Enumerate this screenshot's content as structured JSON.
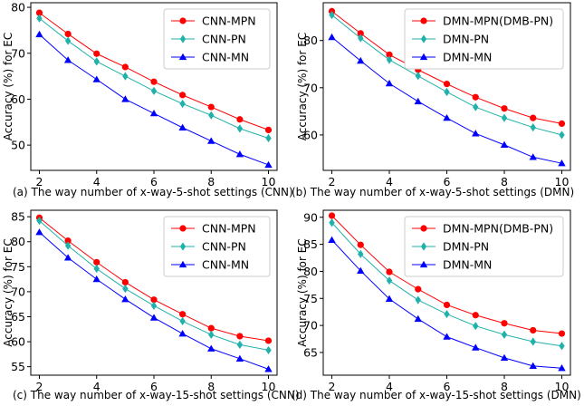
{
  "figure": {
    "panels": [
      {
        "caption": "(a) The way number of x-way-5-shot settings (CNN)",
        "ylabel": "Accuracy (%) for EC"
      },
      {
        "caption": "(b) The way number of x-way-5-shot settings (DMN)",
        "ylabel": "Accuracy (%) for EC"
      },
      {
        "caption": "(c) The way number of x-way-15-shot settings (CNN)",
        "ylabel": "Accuracy (%) for EC"
      },
      {
        "caption": "(d) The way number of x-way-15-shot settings (DMN)",
        "ylabel": "Accuracy (%) for EC"
      }
    ]
  },
  "series_colors": {
    "red": "#ff0000",
    "cyan": "#20b2aa",
    "blue": "#0000ff"
  },
  "chart_data": [
    {
      "type": "line",
      "x": [
        2,
        3,
        4,
        5,
        6,
        7,
        8,
        9,
        10
      ],
      "xticks": [
        2,
        4,
        6,
        8,
        10
      ],
      "xlim": [
        1.7,
        10.3
      ],
      "ylim": [
        44.5,
        81
      ],
      "yticks": [
        50,
        60,
        70,
        80
      ],
      "xlabel": "",
      "ylabel": "Accuracy (%) for EC",
      "legend_position": "top-right",
      "series": [
        {
          "name": "CNN-MPN",
          "marker": "circle",
          "color": "#ff0000",
          "values": [
            78.8,
            74.2,
            69.9,
            67.0,
            63.8,
            60.9,
            58.3,
            55.6,
            53.3
          ]
        },
        {
          "name": "CNN-PN",
          "marker": "diamond",
          "color": "#20b2aa",
          "values": [
            77.6,
            72.7,
            68.2,
            65.0,
            61.8,
            59.0,
            56.5,
            53.6,
            51.5
          ]
        },
        {
          "name": "CNN-MN",
          "marker": "triangle",
          "color": "#0000ff",
          "values": [
            74.1,
            68.5,
            64.3,
            60.0,
            56.9,
            53.8,
            50.9,
            48.0,
            45.7
          ]
        }
      ]
    },
    {
      "type": "line",
      "x": [
        2,
        3,
        4,
        5,
        6,
        7,
        8,
        9,
        10
      ],
      "xticks": [
        2,
        4,
        6,
        8,
        10
      ],
      "xlim": [
        1.7,
        10.3
      ],
      "ylim": [
        52.5,
        88
      ],
      "yticks": [
        60,
        70,
        80
      ],
      "xlabel": "",
      "ylabel": "Accuracy (%) for EC",
      "legend_position": "top-right",
      "series": [
        {
          "name": "DMN-MPN(DMB-PN)",
          "marker": "circle",
          "color": "#ff0000",
          "values": [
            86.2,
            81.5,
            77.0,
            73.8,
            70.8,
            68.0,
            65.6,
            63.6,
            62.4
          ]
        },
        {
          "name": "DMN-PN",
          "marker": "diamond",
          "color": "#20b2aa",
          "values": [
            85.4,
            80.5,
            75.9,
            72.5,
            69.1,
            65.9,
            63.6,
            61.6,
            60.0
          ]
        },
        {
          "name": "DMN-MN",
          "marker": "triangle",
          "color": "#0000ff",
          "values": [
            80.7,
            75.7,
            70.9,
            67.1,
            63.6,
            60.3,
            57.9,
            55.3,
            54.0
          ]
        }
      ]
    },
    {
      "type": "line",
      "x": [
        2,
        3,
        4,
        5,
        6,
        7,
        8,
        9,
        10
      ],
      "xticks": [
        2,
        4,
        6,
        8,
        10
      ],
      "xlim": [
        1.7,
        10.3
      ],
      "ylim": [
        53.3,
        86.3
      ],
      "yticks": [
        55,
        60,
        65,
        70,
        75,
        80,
        85
      ],
      "xlabel": "",
      "ylabel": "Accuracy (%) for EC",
      "legend_position": "top-right",
      "series": [
        {
          "name": "CNN-MPN",
          "marker": "circle",
          "color": "#ff0000",
          "values": [
            84.8,
            80.2,
            75.9,
            71.9,
            68.4,
            65.5,
            62.7,
            61.1,
            60.2
          ]
        },
        {
          "name": "CNN-PN",
          "marker": "diamond",
          "color": "#20b2aa",
          "values": [
            84.2,
            79.2,
            74.6,
            70.6,
            67.2,
            64.1,
            61.4,
            59.4,
            58.3
          ]
        },
        {
          "name": "CNN-MN",
          "marker": "triangle",
          "color": "#0000ff",
          "values": [
            81.9,
            76.8,
            72.5,
            68.5,
            64.8,
            61.6,
            58.6,
            56.6,
            54.5
          ]
        }
      ]
    },
    {
      "type": "line",
      "x": [
        2,
        3,
        4,
        5,
        6,
        7,
        8,
        9,
        10
      ],
      "xticks": [
        2,
        4,
        6,
        8,
        10
      ],
      "xlim": [
        1.7,
        10.3
      ],
      "ylim": [
        60.8,
        91.3
      ],
      "yticks": [
        65,
        70,
        75,
        80,
        85,
        90
      ],
      "xlabel": "",
      "ylabel": "Accuracy (%) for EC",
      "legend_position": "top-right",
      "series": [
        {
          "name": "DMN-MPN(DMB-PN)",
          "marker": "circle",
          "color": "#ff0000",
          "values": [
            90.3,
            84.9,
            79.9,
            76.7,
            73.8,
            71.9,
            70.4,
            69.1,
            68.5
          ]
        },
        {
          "name": "DMN-PN",
          "marker": "diamond",
          "color": "#20b2aa",
          "values": [
            89.0,
            83.2,
            78.3,
            74.7,
            72.1,
            69.9,
            68.3,
            67.0,
            66.2
          ]
        },
        {
          "name": "DMN-MN",
          "marker": "triangle",
          "color": "#0000ff",
          "values": [
            85.8,
            80.1,
            74.9,
            71.2,
            67.9,
            65.9,
            64.0,
            62.5,
            62.1
          ]
        }
      ]
    }
  ]
}
